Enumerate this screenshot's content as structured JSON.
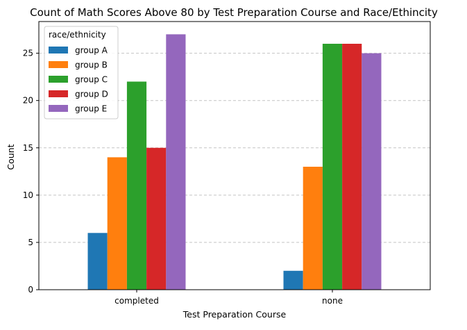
{
  "chart_data": {
    "type": "bar",
    "title": "Count of Math Scores Above 80 by Test Preparation Course and Race/Ethincity",
    "xlabel": "Test Preparation Course",
    "ylabel": "Count",
    "categories": [
      "completed",
      "none"
    ],
    "series": [
      {
        "name": "group A",
        "color": "#1f77b4",
        "values": [
          6,
          2
        ]
      },
      {
        "name": "group B",
        "color": "#ff7f0e",
        "values": [
          14,
          13
        ]
      },
      {
        "name": "group C",
        "color": "#2ca02c",
        "values": [
          22,
          26
        ]
      },
      {
        "name": "group D",
        "color": "#d62728",
        "values": [
          15,
          26
        ]
      },
      {
        "name": "group E",
        "color": "#9467bd",
        "values": [
          27,
          25
        ]
      }
    ],
    "ylim": [
      0,
      28.35
    ],
    "yticks": [
      "0",
      "5",
      "10",
      "15",
      "20",
      "25"
    ],
    "grid": "y-axis, dashed",
    "legend_title": "race/ethnicity",
    "legend_position": "top-left"
  }
}
